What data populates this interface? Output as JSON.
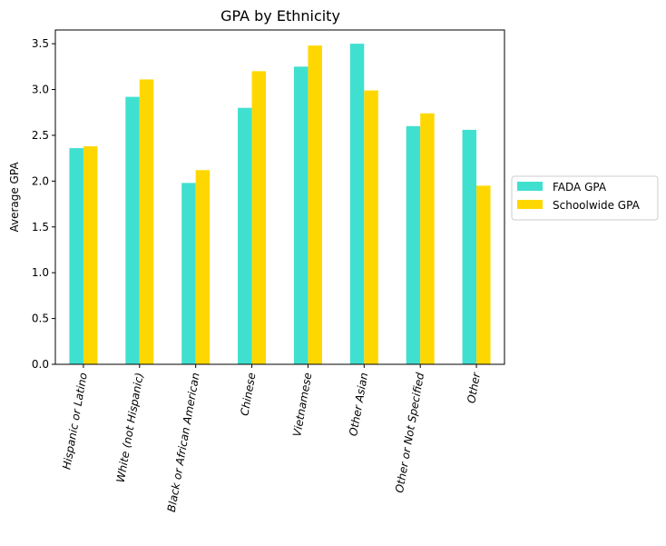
{
  "chart_data": {
    "type": "bar",
    "title": "GPA by Ethnicity",
    "xlabel": "",
    "ylabel": "Average GPA",
    "categories": [
      "Hispanic or Latino",
      "White (not Hispanic)",
      "Black or African American",
      "Chinese",
      "Vietnamese",
      "Other Asian",
      "Other or Not Specified",
      "Other"
    ],
    "series": [
      {
        "name": "FADA GPA",
        "color": "#40e0d0",
        "values": [
          2.36,
          2.92,
          1.98,
          2.8,
          3.25,
          3.5,
          2.6,
          2.56
        ]
      },
      {
        "name": "Schoolwide GPA",
        "color": "#ffd700",
        "values": [
          2.38,
          3.11,
          2.12,
          3.2,
          3.48,
          2.99,
          2.74,
          1.95
        ]
      }
    ],
    "ylim": [
      0,
      3.65
    ],
    "yticks": [
      "0.0",
      "0.5",
      "1.0",
      "1.5",
      "2.0",
      "2.5",
      "3.0",
      "3.5"
    ],
    "grid": false,
    "legend": "center-right"
  }
}
